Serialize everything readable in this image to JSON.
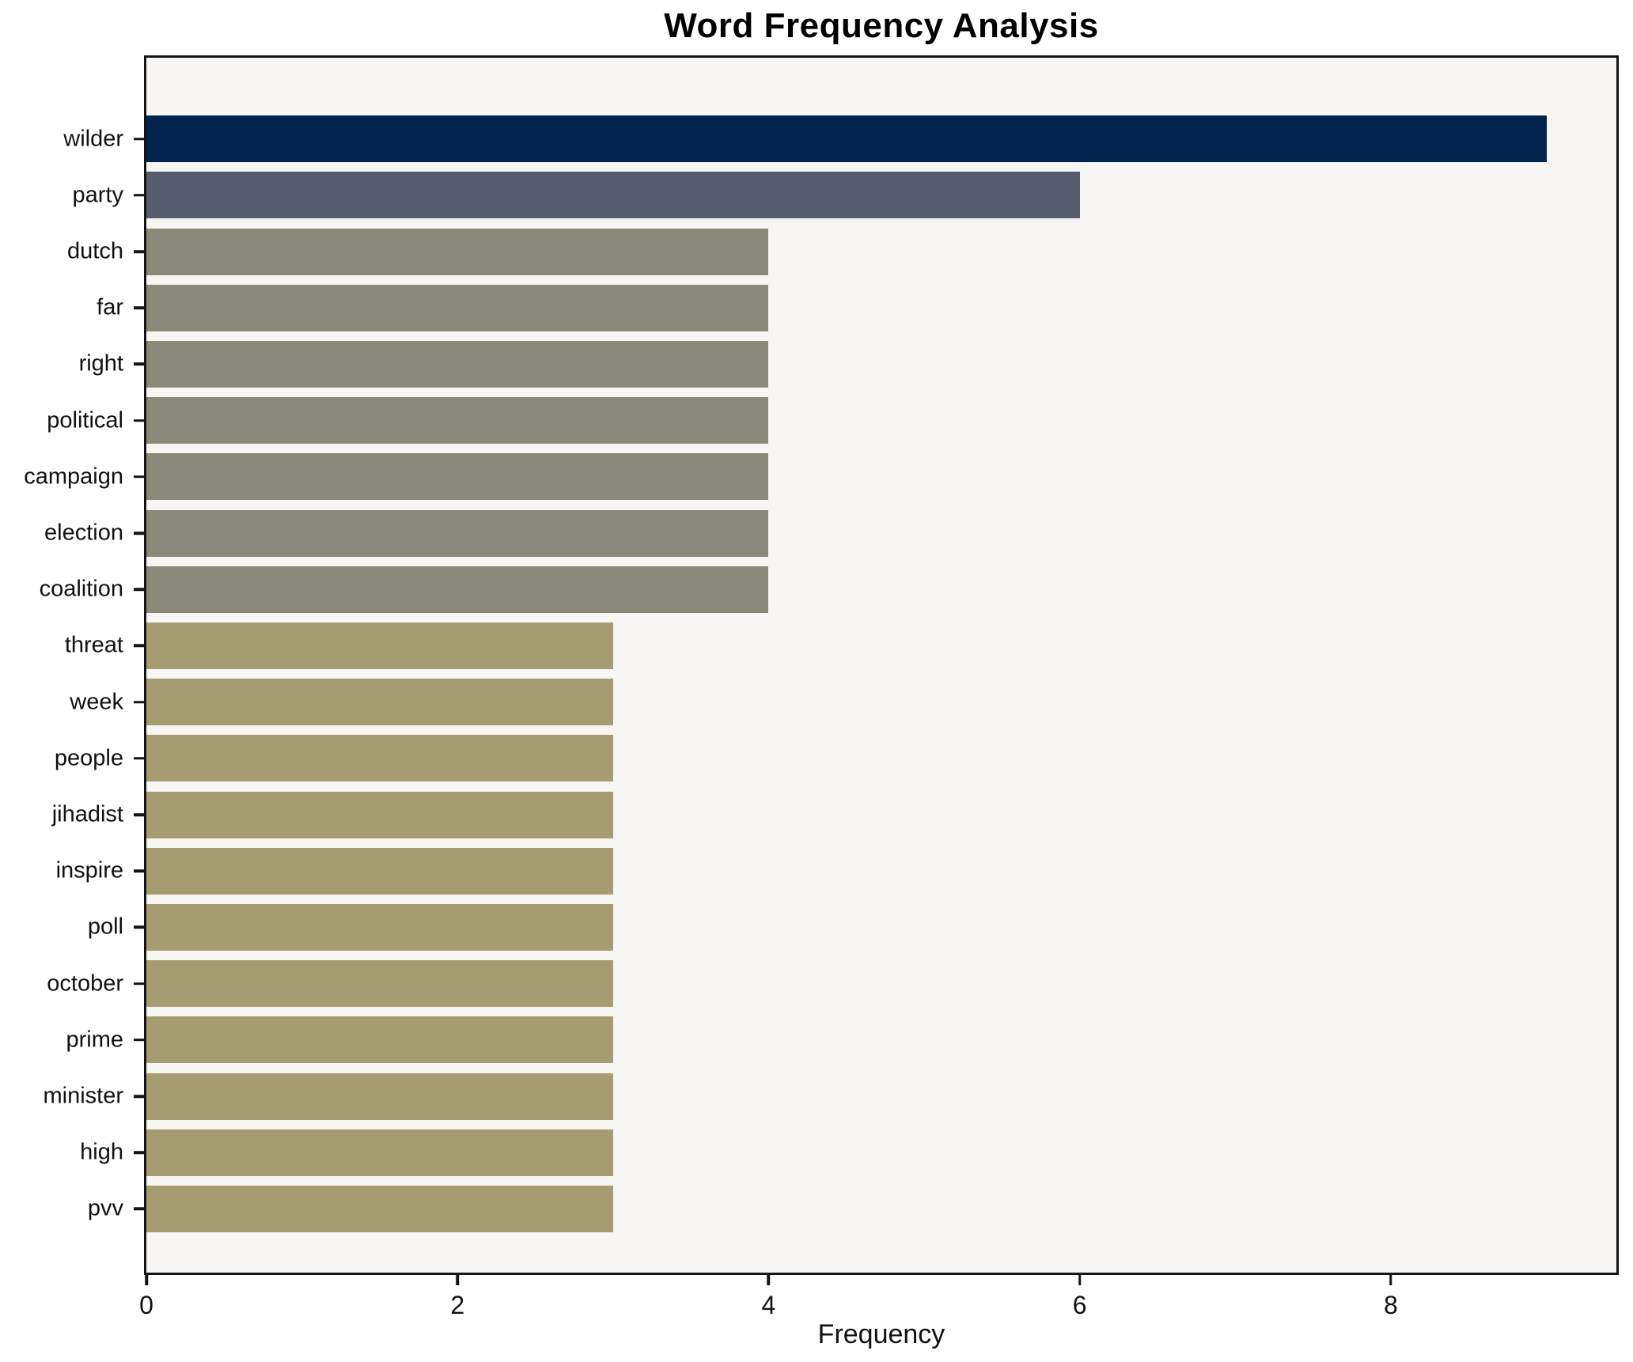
{
  "title": "Word Frequency Analysis",
  "chart_data": {
    "type": "bar",
    "orientation": "horizontal",
    "title": "Word Frequency Analysis",
    "xlabel": "Frequency",
    "ylabel": "",
    "categories": [
      "wilder",
      "party",
      "dutch",
      "far",
      "right",
      "political",
      "campaign",
      "election",
      "coalition",
      "threat",
      "week",
      "people",
      "jihadist",
      "inspire",
      "poll",
      "october",
      "prime",
      "minister",
      "high",
      "pvv"
    ],
    "values": [
      9,
      6,
      4,
      4,
      4,
      4,
      4,
      4,
      4,
      3,
      3,
      3,
      3,
      3,
      3,
      3,
      3,
      3,
      3,
      3
    ],
    "bar_colors": [
      "#02234e",
      "#565c6e",
      "#8a8879",
      "#8a8879",
      "#8a8879",
      "#8a8879",
      "#8a8879",
      "#8a8879",
      "#8a8879",
      "#a59d71",
      "#a59d71",
      "#a59d71",
      "#a59d71",
      "#a59d71",
      "#a59d71",
      "#a59d71",
      "#a59d71",
      "#a59d71",
      "#a59d71",
      "#a59d71"
    ],
    "x_ticks": [
      0,
      2,
      4,
      6,
      8
    ],
    "xlim": [
      0,
      9.45
    ],
    "grid": false,
    "legend": false,
    "plot_background": "#f7f6f4",
    "figure_background": "#ffffff",
    "spine_color": "#141414"
  }
}
